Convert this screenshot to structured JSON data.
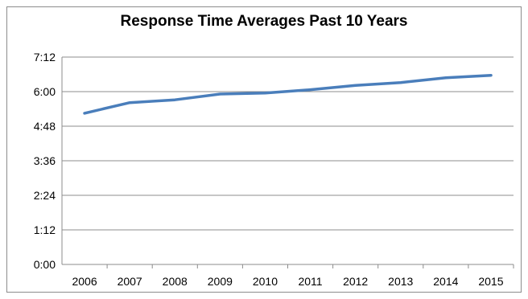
{
  "chart_data": {
    "type": "line",
    "title": "Response Time Averages Past 10 Years",
    "xlabel": "",
    "ylabel": "",
    "categories": [
      "2006",
      "2007",
      "2008",
      "2009",
      "2010",
      "2011",
      "2012",
      "2013",
      "2014",
      "2015"
    ],
    "series": [
      {
        "values": [
          "5:15",
          "5:37",
          "5:43",
          "5:55",
          "5:57",
          "6:04",
          "6:13",
          "6:19",
          "6:29",
          "6:34"
        ],
        "color": "#4a7ebb"
      }
    ],
    "ylim": [
      "0:00",
      "7:12"
    ],
    "yticks": [
      "0:00",
      "1:12",
      "2:24",
      "3:36",
      "4:48",
      "6:00",
      "7:12"
    ],
    "grid": "horizontal",
    "legend": "none"
  }
}
